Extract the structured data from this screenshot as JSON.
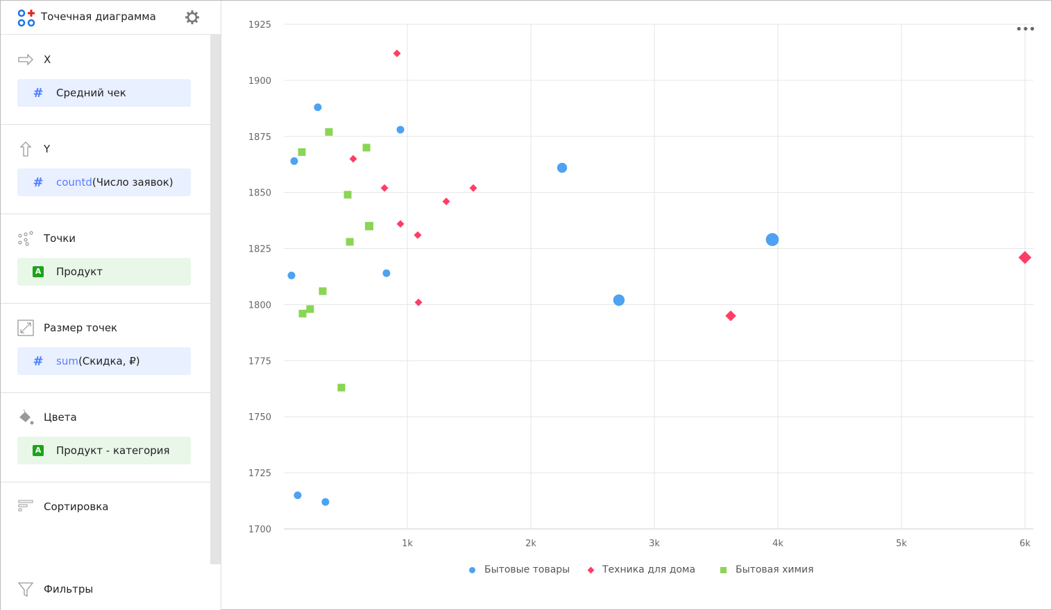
{
  "panel": {
    "title": "Точечная диаграмма",
    "sections": [
      {
        "label": "X",
        "icon": "arrow-right-icon",
        "chip": {
          "type": "number",
          "fn": "",
          "field": "Средний чек"
        }
      },
      {
        "label": "Y",
        "icon": "arrow-up-icon",
        "chip": {
          "type": "number",
          "fn": "countd",
          "field": "(Число заявок)"
        }
      },
      {
        "label": "Точки",
        "icon": "points-icon",
        "chip": {
          "type": "string",
          "fn": "",
          "field": "Продукт"
        }
      },
      {
        "label": "Размер точек",
        "icon": "resize-icon",
        "chip": {
          "type": "number",
          "fn": "sum",
          "field": "(Скидка, ₽)"
        }
      },
      {
        "label": "Цвета",
        "icon": "paint-bucket-icon",
        "chip": {
          "type": "string",
          "fn": "",
          "field": "Продукт - категория"
        }
      },
      {
        "label": "Сортировка",
        "icon": "sort-icon"
      },
      {
        "label": "Фильтры",
        "icon": "filter-icon"
      }
    ],
    "type_badge": "A"
  },
  "chart_data": {
    "type": "scatter",
    "xlim": [
      0,
      6000
    ],
    "ylim": [
      1700,
      1925
    ],
    "x_ticks": [
      {
        "v": 1000,
        "label": "1k"
      },
      {
        "v": 2000,
        "label": "2k"
      },
      {
        "v": 3000,
        "label": "3k"
      },
      {
        "v": 4000,
        "label": "4k"
      },
      {
        "v": 5000,
        "label": "5k"
      },
      {
        "v": 6000,
        "label": "6k"
      }
    ],
    "y_ticks": [
      1700,
      1725,
      1750,
      1775,
      1800,
      1825,
      1850,
      1875,
      1900,
      1925
    ],
    "grid": true,
    "legend_position": "bottom",
    "series": [
      {
        "name": "Бытовые товары",
        "color": "#4da2f1",
        "marker": "circle",
        "points": [
          [
            275,
            1888,
            1
          ],
          [
            944,
            1878,
            1
          ],
          [
            84,
            1864,
            1
          ],
          [
            2253,
            1861,
            1.3
          ],
          [
            3955,
            1829,
            1.7
          ],
          [
            62,
            1813,
            1
          ],
          [
            831,
            1814,
            1
          ],
          [
            2713,
            1802,
            1.5
          ],
          [
            112,
            1715,
            1
          ],
          [
            337,
            1712,
            1
          ]
        ]
      },
      {
        "name": "Техника для дома",
        "color": "#ff3d64",
        "marker": "diamond",
        "points": [
          [
            916,
            1912,
            1
          ],
          [
            562,
            1865,
            1
          ],
          [
            815,
            1852,
            1
          ],
          [
            1534,
            1852,
            1
          ],
          [
            1315,
            1846,
            1
          ],
          [
            944,
            1836,
            1
          ],
          [
            1084,
            1831,
            1
          ],
          [
            1090,
            1801,
            1
          ],
          [
            3618,
            1795,
            1.4
          ],
          [
            6000,
            1821,
            1.7
          ]
        ]
      },
      {
        "name": "Бытовая химия",
        "color": "#8ad554",
        "marker": "square",
        "points": [
          [
            365,
            1877,
            1
          ],
          [
            146,
            1868,
            1
          ],
          [
            669,
            1870,
            1
          ],
          [
            517,
            1849,
            1
          ],
          [
            691,
            1835,
            1.1
          ],
          [
            534,
            1828,
            1
          ],
          [
            315,
            1806,
            1
          ],
          [
            213,
            1798,
            1
          ],
          [
            152,
            1796,
            1
          ],
          [
            466,
            1763,
            1
          ]
        ]
      }
    ]
  }
}
